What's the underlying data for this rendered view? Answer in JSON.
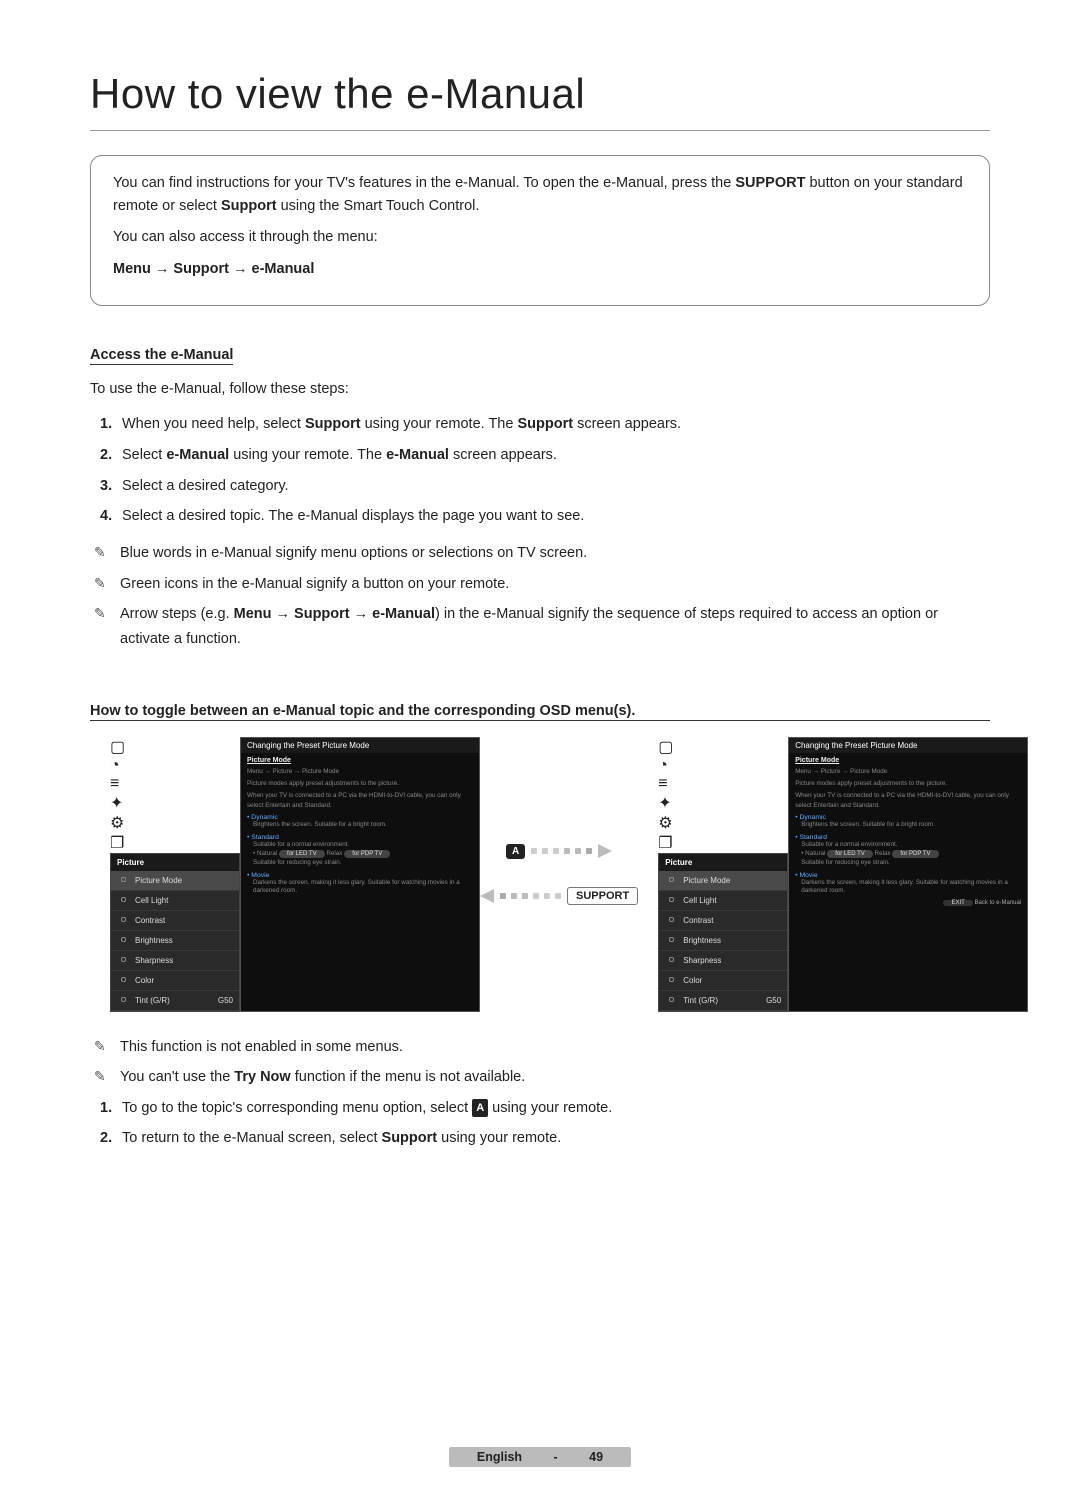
{
  "title": "How to view the e-Manual",
  "intro": {
    "p1_a": "You can find instructions for your TV's features in the e-Manual. To open the e-Manual, press the ",
    "p1_b": "SUPPORT",
    "p1_c": " button on your standard remote or select ",
    "p1_d": "Support",
    "p1_e": " using the Smart Touch Control.",
    "p2": "You can also access it through the menu:",
    "p3": "Menu → Support → e-Manual"
  },
  "section1": {
    "head": "Access the e-Manual",
    "lead": "To use the e-Manual, follow these steps:",
    "steps": [
      {
        "n": "1.",
        "a": "When you need help, select ",
        "b": "Support",
        "c": " using your remote. The ",
        "d": "Support",
        "e": " screen appears."
      },
      {
        "n": "2.",
        "a": "Select ",
        "b": "e-Manual",
        "c": " using your remote. The ",
        "d": "e-Manual",
        "e": " screen appears."
      },
      {
        "n": "3.",
        "a": "Select a desired category.",
        "b": "",
        "c": "",
        "d": "",
        "e": ""
      },
      {
        "n": "4.",
        "a": "Select a desired topic. The e-Manual displays the page you want to see.",
        "b": "",
        "c": "",
        "d": "",
        "e": ""
      }
    ],
    "notes": [
      "Blue words in e-Manual signify menu options or selections on TV screen.",
      "Green icons in the e-Manual signify a button on your remote."
    ],
    "note_arrow": {
      "a": "Arrow steps (e.g. ",
      "b": "Menu → Support → e-Manual",
      "c": ") in the e-Manual signify the sequence of steps required to access an option or activate a function."
    }
  },
  "section2": {
    "head": "How to toggle between an e-Manual topic and the corresponding OSD menu(s).",
    "panel_header": "Changing the Preset Picture Mode",
    "sidebar": {
      "header": "Picture",
      "items": [
        {
          "label": "Picture Mode",
          "val": ""
        },
        {
          "label": "Cell Light",
          "val": ""
        },
        {
          "label": "Contrast",
          "val": ""
        },
        {
          "label": "Brightness",
          "val": ""
        },
        {
          "label": "Sharpness",
          "val": ""
        },
        {
          "label": "Color",
          "val": ""
        },
        {
          "label": "Tint (G/R)",
          "val": "G50"
        }
      ]
    },
    "content": {
      "title": "Picture Mode",
      "path": "Menu → Picture → Picture Mode",
      "line1": "Picture modes apply preset adjustments to the picture.",
      "line2": "When your TV is connected to a PC via the HDMI-to-DVI cable, you can only select Entertain and Standard.",
      "b1": "Dynamic",
      "b1s": "Brightens the screen. Suitable for a bright room.",
      "b2": "Standard",
      "b2s": "Suitable for a normal environment.",
      "b3": "Natural",
      "b3s": "Suitable for reducing eye strain.",
      "b4": "Movie",
      "b4s": "Darkens the screen, making it less glary. Suitable for watching movies in a darkened room.",
      "footer": "Back to e-Manual"
    },
    "arrows": {
      "a_label": "A",
      "support_label": "SUPPORT"
    },
    "notes": [
      "This function is not enabled in some menus."
    ],
    "note_try": {
      "a": "You can't use the ",
      "b": "Try Now",
      "c": " function if the menu is not available."
    },
    "steps": [
      {
        "n": "1.",
        "a": "To go to the topic's corresponding menu option, select ",
        "icon": "A",
        "c": " using your remote."
      },
      {
        "n": "2.",
        "a": "To return to the e-Manual screen, select ",
        "b": "Support",
        "c": " using your remote."
      }
    ]
  },
  "pager": {
    "lang": "English",
    "sep": " - ",
    "num": "49"
  }
}
